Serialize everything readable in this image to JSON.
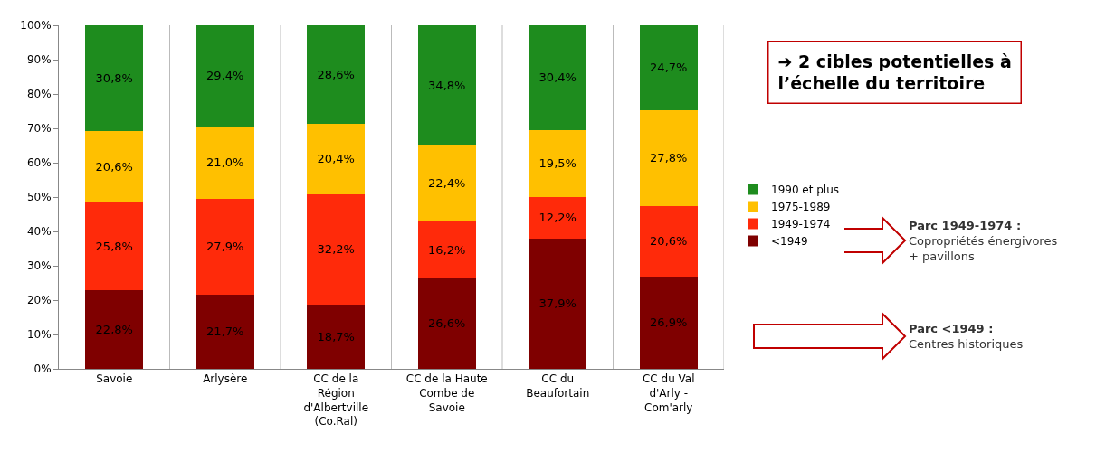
{
  "chart_data": {
    "type": "bar",
    "stacked": true,
    "categories": [
      "Savoie",
      "Arlysère",
      "CC de la Région d'Albertville (Co.Ral)",
      "CC de la Haute Combe de Savoie",
      "CC du Beaufortain",
      "CC du Val d'Arly - Com'arly"
    ],
    "series": [
      {
        "name": "<1949",
        "color": "#7f0000",
        "values": [
          22.8,
          21.7,
          18.7,
          26.6,
          37.9,
          26.9
        ],
        "value_labels": [
          "22,8%",
          "21,7%",
          "18,7%",
          "26,6%",
          "37,9%",
          "26,9%"
        ]
      },
      {
        "name": "1949-1974",
        "color": "#ff2a0a",
        "values": [
          25.8,
          27.9,
          32.2,
          16.2,
          12.2,
          20.6
        ],
        "value_labels": [
          "25,8%",
          "27,9%",
          "32,2%",
          "16,2%",
          "12,2%",
          "20,6%"
        ]
      },
      {
        "name": "1975-1989",
        "color": "#ffc000",
        "values": [
          20.6,
          21.0,
          20.4,
          22.4,
          19.5,
          27.8
        ],
        "value_labels": [
          "20,6%",
          "21,0%",
          "20,4%",
          "22,4%",
          "19,5%",
          "27,8%"
        ]
      },
      {
        "name": "1990 et plus",
        "color": "#1e8c1e",
        "values": [
          30.8,
          29.4,
          28.6,
          34.8,
          30.4,
          24.7
        ],
        "value_labels": [
          "30,8%",
          "29,4%",
          "28,6%",
          "34,8%",
          "30,4%",
          "24,7%"
        ]
      }
    ],
    "ylim": [
      0,
      100
    ],
    "yticks": [
      {
        "value": 0,
        "label": "0%"
      },
      {
        "value": 10,
        "label": "10%"
      },
      {
        "value": 20,
        "label": "20%"
      },
      {
        "value": 30,
        "label": "30%"
      },
      {
        "value": 40,
        "label": "40%"
      },
      {
        "value": 50,
        "label": "50%"
      },
      {
        "value": 60,
        "label": "60%"
      },
      {
        "value": 70,
        "label": "70%"
      },
      {
        "value": 80,
        "label": "80%"
      },
      {
        "value": 90,
        "label": "90%"
      },
      {
        "value": 100,
        "label": "100%"
      }
    ],
    "grid": "x",
    "legend": "right",
    "annotations": [
      "➔ 2 cibles potentielles à\nl’échelle du territoire",
      "Parc 1949-1974 :\nCopropriétés énergivores\n+ pavillons",
      "Parc <1949 :\nCentres historiques"
    ]
  }
}
